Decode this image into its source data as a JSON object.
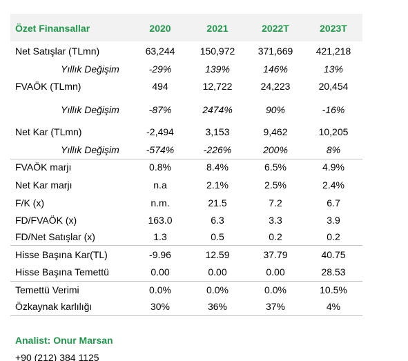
{
  "header": {
    "title": "Özet Finansallar",
    "columns": [
      "2020",
      "2021",
      "2022T",
      "2023T"
    ]
  },
  "rows": [
    {
      "label": "Net Satışlar (TLmn)",
      "values": [
        "63,244",
        "150,972",
        "371,669",
        "421,218"
      ]
    },
    {
      "label": "Yıllık Değişim",
      "values": [
        "-29%",
        "139%",
        "146%",
        "13%"
      ]
    },
    {
      "label": "FVAÖK (TLmn)",
      "values": [
        "494",
        "12,722",
        "24,223",
        "20,454"
      ]
    },
    {
      "label": "Yıllık Değişim",
      "values": [
        "-87%",
        "2474%",
        "90%",
        "-16%"
      ]
    },
    {
      "label": "Net Kar (TLmn)",
      "values": [
        "-2,494",
        "3,153",
        "9,462",
        "10,205"
      ]
    },
    {
      "label": "Yıllık Değişim",
      "values": [
        "-574%",
        "-226%",
        "200%",
        "8%"
      ]
    },
    {
      "label": "FVAÖK marjı",
      "values": [
        "0.8%",
        "8.4%",
        "6.5%",
        "4.9%"
      ]
    },
    {
      "label": "Net Kar marjı",
      "values": [
        "n.a",
        "2.1%",
        "2.5%",
        "2.4%"
      ]
    },
    {
      "label": "F/K (x)",
      "values": [
        "n.m.",
        "21.5",
        "7.2",
        "6.7"
      ]
    },
    {
      "label": "FD/FVAÖK (x)",
      "values": [
        "163.0",
        "6.3",
        "3.3",
        "3.9"
      ]
    },
    {
      "label": "FD/Net Satışlar (x)",
      "values": [
        "1.3",
        "0.5",
        "0.2",
        "0.2"
      ]
    },
    {
      "label": "Hisse Başına Kar(TL)",
      "values": [
        "-9.96",
        "12.59",
        "37.79",
        "40.75"
      ]
    },
    {
      "label": "Hisse Başına Temettü",
      "values": [
        "0.00",
        "0.00",
        "0.00",
        "28.53"
      ]
    },
    {
      "label": "Temettü Verimi",
      "values": [
        "0.0%",
        "0.0%",
        "0.0%",
        "10.5%"
      ]
    },
    {
      "label": "Özkaynak karlılığı",
      "values": [
        "30%",
        "36%",
        "37%",
        "4%"
      ]
    }
  ],
  "footer": {
    "analyst": "Analist: Onur Marsan",
    "phone": "+90 (212) 384 1125"
  }
}
